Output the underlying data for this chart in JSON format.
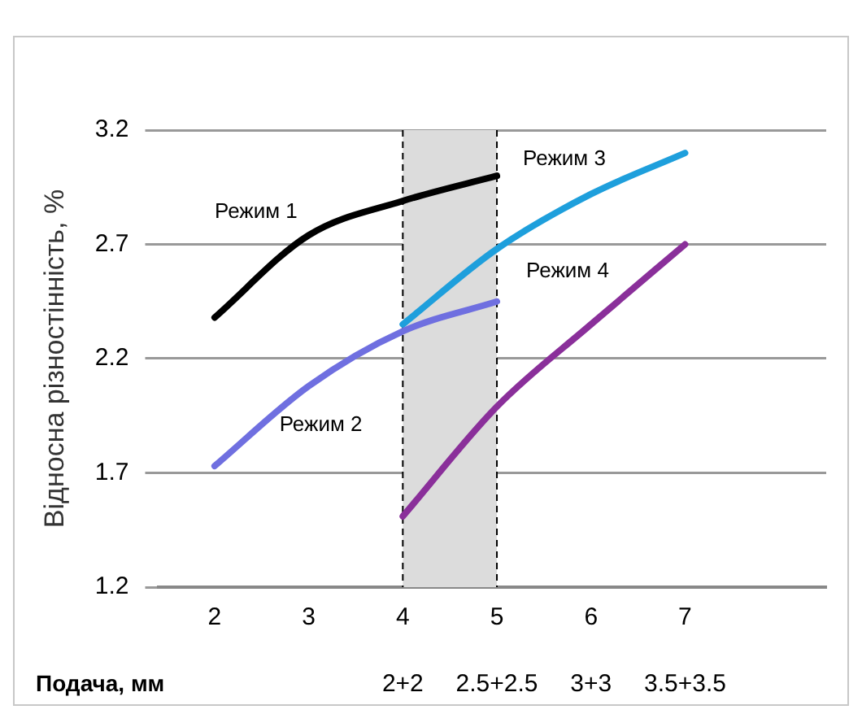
{
  "chart_data": {
    "type": "line",
    "ylabel": "Відносна різностінність, %",
    "xlabel": "Подача, мм",
    "xlim": [
      1.4,
      8.5
    ],
    "xticks": [
      2,
      3,
      4,
      5,
      6,
      7
    ],
    "annotations": [
      "2+2",
      "2.5+2.5",
      "3+3",
      "3.5+3.5"
    ],
    "ylim": [
      1.2,
      3.2
    ],
    "yticks": [
      1.2,
      1.7,
      2.2,
      2.7,
      3.2
    ],
    "grid": "y",
    "legend": false,
    "marker": "none",
    "line_style": "solid",
    "bands": [
      {
        "axis": "x",
        "from": 4,
        "to": 5,
        "color": "#dcdcdc"
      }
    ],
    "ref_lines": [
      {
        "axis": "x",
        "value": 4,
        "color": "#000000",
        "line_style": "dashed"
      },
      {
        "axis": "x",
        "value": 5,
        "color": "#000000",
        "line_style": "dashed"
      }
    ],
    "series": [
      {
        "name": "Режим 1",
        "color": "#000000",
        "x": [
          2,
          3,
          4,
          5
        ],
        "values": [
          2.38,
          2.74,
          2.89,
          3.0
        ]
      },
      {
        "name": "Режим 2",
        "color": "#6f6fe0",
        "x": [
          2,
          3,
          4,
          5
        ],
        "values": [
          1.73,
          2.08,
          2.32,
          2.45
        ]
      },
      {
        "name": "Режим 3",
        "color": "#1e9fdc",
        "x": [
          4,
          5,
          6,
          7
        ],
        "values": [
          2.35,
          2.68,
          2.92,
          3.1
        ]
      },
      {
        "name": "Режим 4",
        "color": "#8a2f9a",
        "x": [
          4,
          5,
          6,
          7
        ],
        "values": [
          1.51,
          1.99,
          2.35,
          2.7
        ]
      }
    ]
  }
}
